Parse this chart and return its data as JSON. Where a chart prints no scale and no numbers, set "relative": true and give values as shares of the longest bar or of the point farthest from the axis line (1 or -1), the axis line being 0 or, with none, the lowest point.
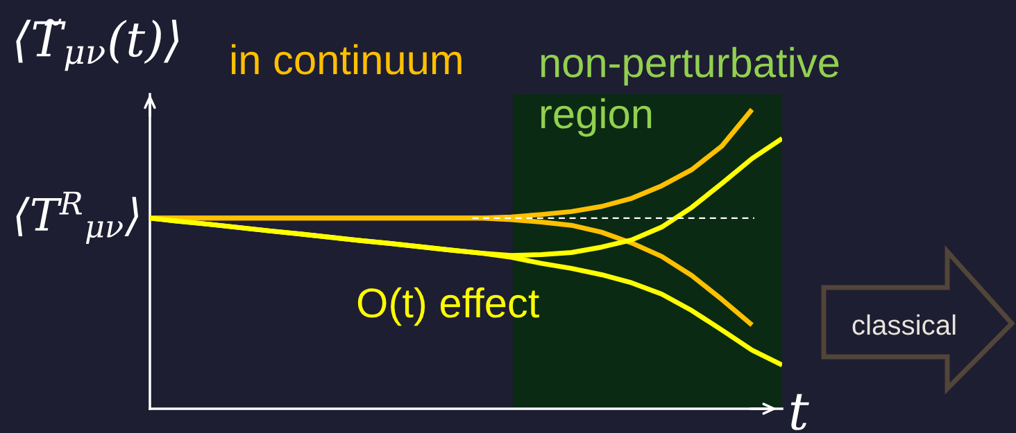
{
  "chart_data": {
    "type": "line",
    "relative": true,
    "ylabel": "⟨T̃$_{μν}$(t)⟩",
    "xlabel": "t",
    "tick_labels": false,
    "categories": [
      null,
      null,
      null,
      null,
      null,
      null,
      null,
      null,
      null,
      null,
      null,
      null,
      null,
      null,
      null,
      null,
      null,
      null,
      null,
      null,
      null,
      null
    ],
    "series": [
      {
        "name": "in continuum",
        "color": "#ffc000",
        "values": [
          0.637,
          0.637,
          0.637,
          0.637,
          0.637,
          0.637,
          0.637,
          0.637,
          0.637,
          0.637,
          0.637,
          0.637,
          0.641,
          0.649,
          0.659,
          0.676,
          0.703,
          0.745,
          0.799,
          0.878,
          1.0,
          null
        ]
      },
      {
        "color": "#ffc000",
        "values": [
          0.637,
          0.637,
          0.637,
          0.637,
          0.637,
          0.637,
          0.637,
          0.637,
          0.637,
          0.637,
          0.637,
          0.637,
          0.632,
          0.624,
          0.613,
          0.59,
          0.554,
          0.509,
          0.445,
          0.365,
          0.28,
          null
        ]
      },
      {
        "name": "O(t) effect",
        "color": "#ffff00",
        "values": [
          0.637,
          0.626,
          0.616,
          0.605,
          0.594,
          0.584,
          0.573,
          0.562,
          0.552,
          0.541,
          0.53,
          0.52,
          0.512,
          0.515,
          0.522,
          0.54,
          0.564,
          0.607,
          0.673,
          0.753,
          0.836,
          0.903
        ]
      },
      {
        "color": "#ffff00",
        "values": [
          0.637,
          0.626,
          0.616,
          0.605,
          0.594,
          0.584,
          0.573,
          0.562,
          0.552,
          0.541,
          0.53,
          0.52,
          0.506,
          0.486,
          0.469,
          0.448,
          0.421,
          0.383,
          0.328,
          0.263,
          0.196,
          0.146
        ]
      }
    ],
    "ref_lines": [
      {
        "axis": "y",
        "value": 0.637,
        "label": "⟨T$^{R}$$_{μν}$⟩",
        "color": "#ffffff",
        "line_style": "dashed"
      }
    ],
    "annotations": [
      "non-perturbative region",
      "classical"
    ]
  }
}
